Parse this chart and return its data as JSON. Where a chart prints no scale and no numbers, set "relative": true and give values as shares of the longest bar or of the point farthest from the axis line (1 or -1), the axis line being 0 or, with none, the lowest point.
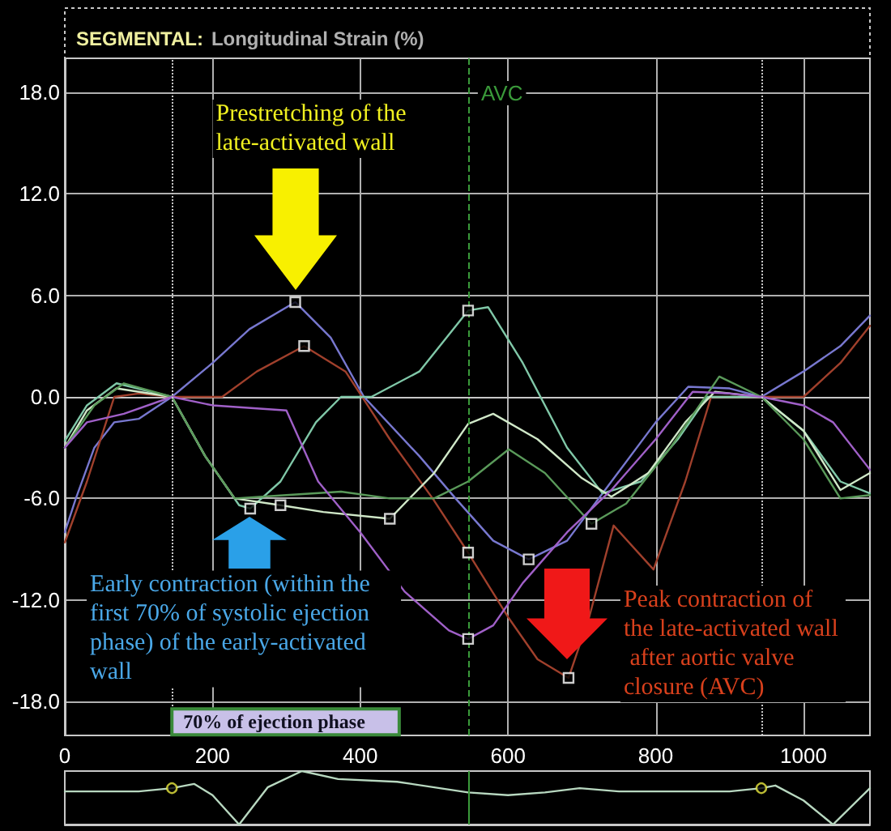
{
  "chart_data": [
    {
      "type": "line",
      "title": "SEGMENTAL:",
      "subtitle": "Longitudinal Strain (%)",
      "xlim": [
        0,
        1090
      ],
      "xticks": [
        0,
        200,
        400,
        600,
        800,
        1000
      ],
      "ylim": [
        -20,
        20
      ],
      "yticks": [
        {
          "value": -18,
          "label": "-18.0"
        },
        {
          "value": -12,
          "label": "-12.0"
        },
        {
          "value": -6,
          "label": "-6.0"
        },
        {
          "value": 0,
          "label": "0.0"
        },
        {
          "value": 6,
          "label": "6.0"
        },
        {
          "value": 12,
          "label": "12.0"
        },
        {
          "value": 18,
          "label": "18.0"
        }
      ],
      "tick_labels": "y",
      "grid": true,
      "marker": "none",
      "line_style": "solid",
      "series": [
        {
          "color": "#7878d0",
          "x": [
            0,
            15,
            40,
            67,
            100,
            145,
            200,
            250,
            312,
            360,
            405,
            480,
            529,
            580,
            628,
            680,
            740,
            800,
            844,
            900,
            943,
            1000,
            1050,
            1090
          ],
          "values": [
            -8,
            -6,
            -3,
            -1.5,
            -1.3,
            0,
            2,
            4,
            5.6,
            3.5,
            0,
            -3.5,
            -6,
            -8.5,
            -9.6,
            -8.5,
            -5,
            -1.5,
            0.6,
            0.5,
            0,
            1.5,
            3,
            4.8
          ]
        },
        {
          "color": "#a0402c",
          "x": [
            0,
            30,
            67,
            100,
            145,
            213,
            260,
            324,
            380,
            440,
            498,
            546,
            600,
            640,
            682,
            710,
            743,
            797,
            840,
            875,
            943,
            1000,
            1050,
            1090
          ],
          "values": [
            -8.6,
            -5,
            0,
            0.2,
            0,
            0,
            1.5,
            3,
            1.5,
            -2.5,
            -6,
            -9.2,
            -13,
            -15.5,
            -16.6,
            -13,
            -7.6,
            -10.2,
            -5,
            0,
            0,
            0,
            2,
            4.2
          ]
        },
        {
          "color": "#80c8a8",
          "x": [
            0,
            30,
            70,
            145,
            190,
            236,
            251,
            292,
            340,
            374,
            415,
            480,
            546,
            573,
            620,
            680,
            728,
            780,
            830,
            870,
            943,
            1000,
            1050,
            1090
          ],
          "values": [
            -2.6,
            -0.5,
            0.8,
            0,
            -3.5,
            -6.4,
            -6.6,
            -5,
            -1.5,
            0,
            0,
            1.5,
            5.1,
            5.3,
            2,
            -3,
            -5.7,
            -5,
            -2.5,
            0,
            0,
            -2,
            -5,
            -5.7
          ]
        },
        {
          "color": "#d0e8c8",
          "x": [
            0,
            30,
            70,
            145,
            190,
            230,
            292,
            350,
            440,
            500,
            546,
            580,
            640,
            700,
            740,
            790,
            840,
            880,
            943,
            1000,
            1050,
            1090
          ],
          "values": [
            -3,
            -0.8,
            0.5,
            0,
            -3.5,
            -6,
            -6.4,
            -6.8,
            -7.2,
            -4.5,
            -1.6,
            -1,
            -2.5,
            -4.8,
            -5.9,
            -4.5,
            -1.5,
            0.3,
            0,
            -2,
            -5.5,
            -4.5
          ]
        },
        {
          "color": "#5a9a5a",
          "x": [
            0,
            40,
            80,
            145,
            190,
            230,
            300,
            374,
            440,
            500,
            546,
            601,
            650,
            713,
            760,
            820,
            886,
            943,
            1000,
            1050,
            1090
          ],
          "values": [
            -3,
            -0.5,
            0.8,
            0,
            -3.5,
            -6,
            -5.8,
            -5.6,
            -6,
            -6,
            -5,
            -3.1,
            -4.5,
            -7.5,
            -6.3,
            -3,
            1.2,
            0,
            -2.5,
            -6,
            -5.8
          ]
        },
        {
          "color": "#a060c8",
          "x": [
            0,
            30,
            80,
            145,
            200,
            300,
            343,
            400,
            460,
            520,
            546,
            580,
            620,
            680,
            740,
            800,
            850,
            900,
            943,
            1000,
            1040,
            1090
          ],
          "values": [
            -3,
            -1.5,
            -1,
            0,
            -0.5,
            -0.8,
            -5,
            -8,
            -11.5,
            -13.8,
            -14.3,
            -13.5,
            -11,
            -8,
            -5.5,
            -2.5,
            0.3,
            0.2,
            0,
            -0.5,
            -1.5,
            -4.3
          ]
        },
        {
          "type": "scatter",
          "marker": "square",
          "color": "#ffffff",
          "x": [
            251,
            292,
            312,
            324,
            440,
            546,
            546,
            546,
            628,
            682,
            713
          ],
          "values": [
            -6.6,
            -6.4,
            5.6,
            3.0,
            -7.2,
            5.1,
            -9.2,
            -14.3,
            -9.6,
            -16.6,
            -7.5
          ]
        }
      ],
      "ref_lines": [
        {
          "axis": "x",
          "value": 145,
          "color": "#c8c8c8",
          "line_style": "dotted"
        },
        {
          "axis": "x",
          "value": 546,
          "label": "AVC",
          "color": "#3a9a3a",
          "line_style": "dashed"
        },
        {
          "axis": "x",
          "value": 943,
          "color": "#c8c8c8",
          "line_style": "dotted"
        }
      ],
      "annotations": [
        "Prestretching of the late-activated wall",
        {
          "text": "Early contraction (within the first 70% of systolic ejection phase) of the early-activated wall",
          "x": 249,
          "y": -7.1
        },
        {
          "text": "Peak contraction of the late-activated wall after aortic valve closure (AVC)",
          "x": 682,
          "y": -16.6
        },
        {
          "text": "70% of ejection phase",
          "x": 145,
          "y": -19.2
        }
      ]
    },
    {
      "type": "line",
      "relative": true,
      "xlim": [
        0,
        1090
      ],
      "xticks": [
        0,
        200,
        400,
        600,
        800,
        1000
      ],
      "tick_labels": "x",
      "marker": "none",
      "line_style": "solid",
      "series": [
        {
          "color": "#b8d8c0",
          "x": [
            0,
            100,
            145,
            175,
            200,
            236,
            275,
            321,
            370,
            450,
            546,
            600,
            650,
            697,
            750,
            900,
            943,
            962,
            1000,
            1040,
            1090
          ],
          "values": [
            0.62,
            0.62,
            0.68,
            0.76,
            0.55,
            0,
            0.7,
            1,
            0.85,
            0.8,
            0.6,
            0.55,
            0.6,
            0.68,
            0.62,
            0.62,
            0.68,
            0.73,
            0.45,
            0,
            0.68
          ]
        },
        {
          "type": "scatter",
          "marker": "circle",
          "color": "#e8e840",
          "x": [
            145,
            943
          ],
          "values": [
            0.68,
            0.68
          ]
        }
      ],
      "ref_lines": [
        {
          "axis": "x",
          "value": 546,
          "color": "#3a9a3a",
          "line_style": "solid"
        }
      ]
    }
  ]
}
